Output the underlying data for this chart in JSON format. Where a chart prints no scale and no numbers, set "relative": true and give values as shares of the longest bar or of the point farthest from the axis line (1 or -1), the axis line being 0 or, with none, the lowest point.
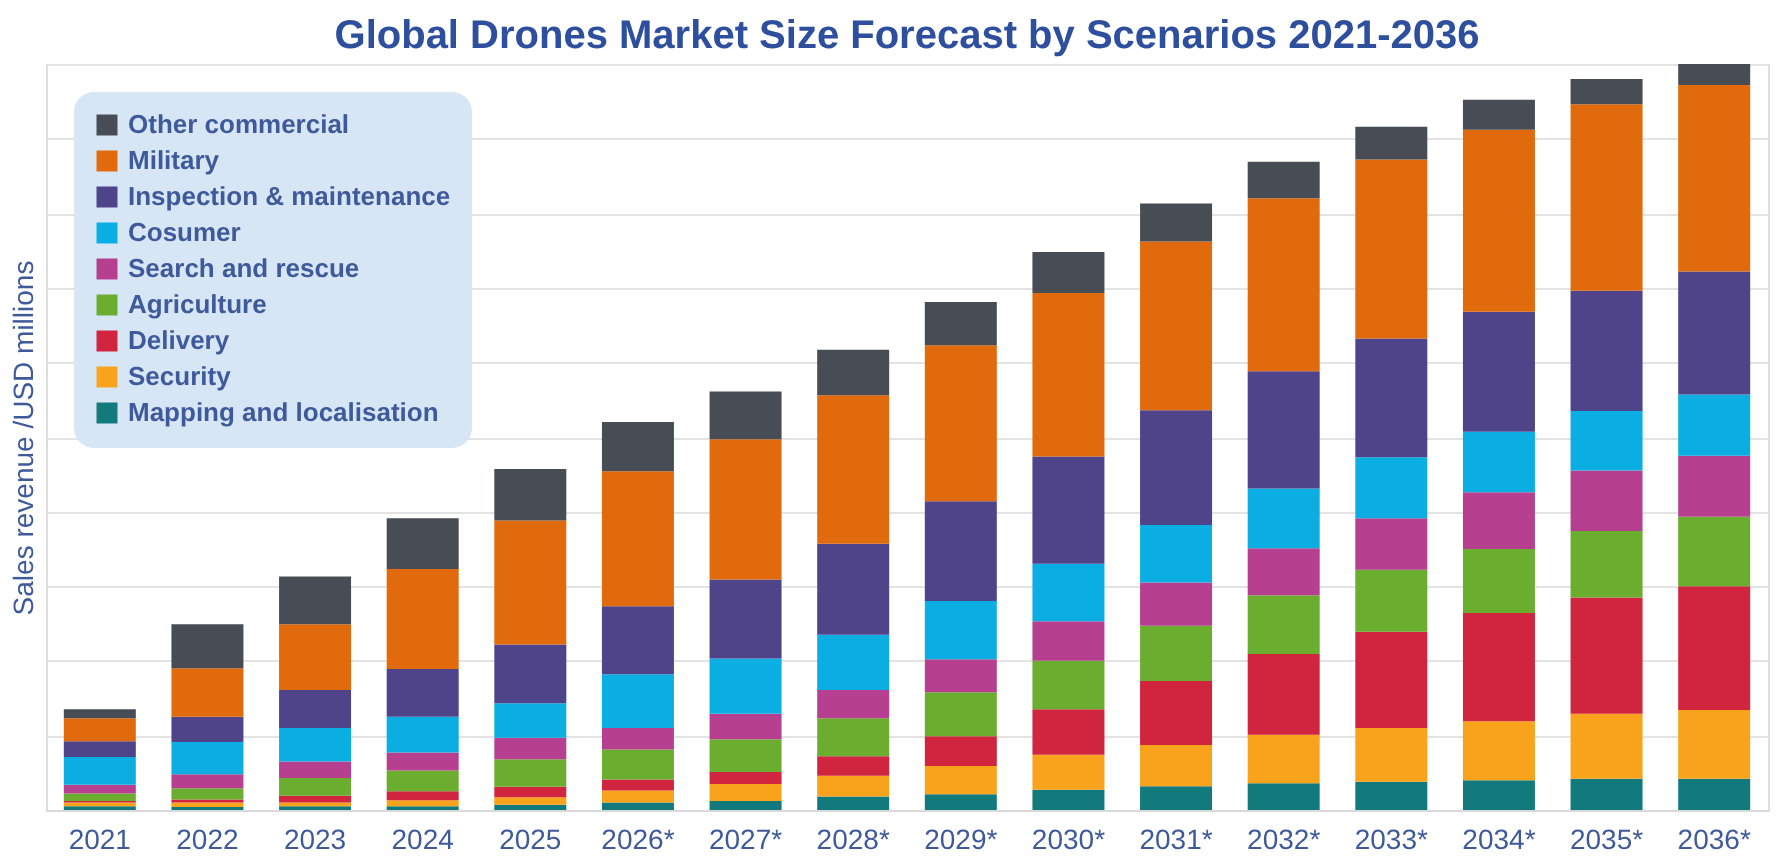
{
  "chart_data": {
    "type": "bar",
    "stacked": true,
    "relative": true,
    "title": "Global Drones Market Size Forecast by Scenarios 2021-2036",
    "ylabel": "Sales revenue /USD millions",
    "legend": "top left",
    "grid": "y",
    "categories": [
      "2021",
      "2022",
      "2023",
      "2024",
      "2025",
      "2026*",
      "2027*",
      "2028*",
      "2029*",
      "2030*",
      "2031*",
      "2032*",
      "2033*",
      "2034*",
      "2035*",
      "2036*"
    ],
    "series": [
      {
        "name": "Mapping and localisation",
        "color": "#127a7c",
        "values": [
          0.005,
          0.004,
          0.005,
          0.005,
          0.007,
          0.01,
          0.012,
          0.018,
          0.021,
          0.027,
          0.032,
          0.036,
          0.038,
          0.04,
          0.042,
          0.042
        ]
      },
      {
        "name": "Security",
        "color": "#f9a21b",
        "values": [
          0.005,
          0.006,
          0.005,
          0.008,
          0.01,
          0.016,
          0.023,
          0.028,
          0.038,
          0.047,
          0.055,
          0.065,
          0.072,
          0.079,
          0.087,
          0.092
        ]
      },
      {
        "name": "Delivery",
        "color": "#d0243f",
        "values": [
          0.002,
          0.004,
          0.009,
          0.012,
          0.014,
          0.015,
          0.016,
          0.026,
          0.04,
          0.061,
          0.086,
          0.108,
          0.129,
          0.145,
          0.156,
          0.166
        ]
      },
      {
        "name": "Agriculture",
        "color": "#6aad2f",
        "values": [
          0.01,
          0.015,
          0.024,
          0.028,
          0.037,
          0.04,
          0.044,
          0.051,
          0.059,
          0.065,
          0.074,
          0.079,
          0.083,
          0.086,
          0.089,
          0.093
        ]
      },
      {
        "name": "Search and rescue",
        "color": "#b6408f",
        "values": [
          0.012,
          0.019,
          0.022,
          0.024,
          0.029,
          0.029,
          0.034,
          0.038,
          0.044,
          0.053,
          0.058,
          0.063,
          0.069,
          0.076,
          0.081,
          0.082
        ]
      },
      {
        "name": "Cosumer",
        "color": "#0aaee3",
        "values": [
          0.037,
          0.043,
          0.045,
          0.048,
          0.046,
          0.072,
          0.074,
          0.074,
          0.078,
          0.077,
          0.077,
          0.08,
          0.082,
          0.081,
          0.08,
          0.082
        ]
      },
      {
        "name": "Inspection & maintenance",
        "color": "#4f438a",
        "values": [
          0.021,
          0.034,
          0.051,
          0.064,
          0.079,
          0.091,
          0.106,
          0.122,
          0.134,
          0.144,
          0.154,
          0.157,
          0.159,
          0.161,
          0.161,
          0.165
        ]
      },
      {
        "name": "Military",
        "color": "#e06a0c",
        "values": [
          0.031,
          0.065,
          0.088,
          0.134,
          0.166,
          0.181,
          0.188,
          0.199,
          0.209,
          0.219,
          0.226,
          0.232,
          0.24,
          0.244,
          0.25,
          0.25
        ]
      },
      {
        "name": "Other commercial",
        "color": "#484c54",
        "values": [
          0.012,
          0.059,
          0.064,
          0.068,
          0.069,
          0.066,
          0.064,
          0.061,
          0.058,
          0.055,
          0.051,
          0.049,
          0.044,
          0.04,
          0.034,
          0.028
        ]
      }
    ]
  }
}
